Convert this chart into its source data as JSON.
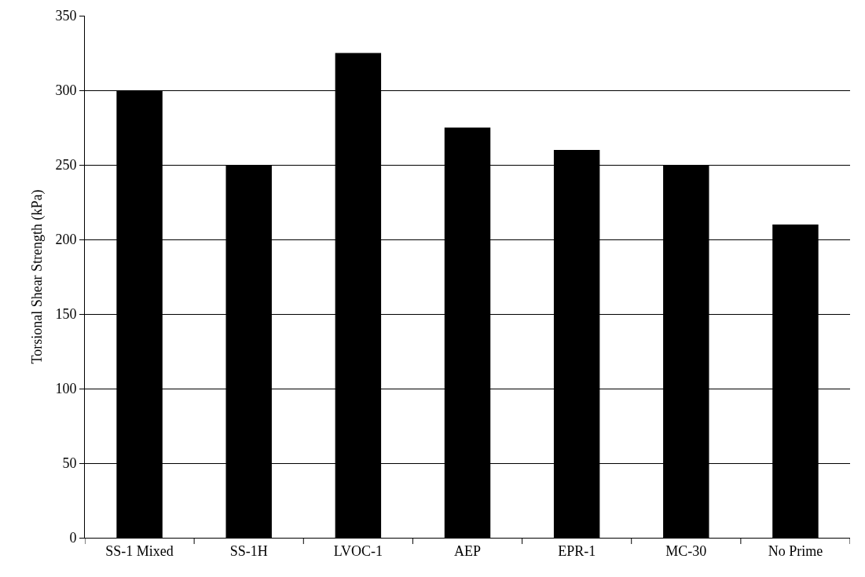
{
  "chart_data": {
    "type": "bar",
    "ylabel": "Torsional Shear Strength (kPa)",
    "categories": [
      "SS-1 Mixed",
      "SS-1H",
      "LVOC-1",
      "AEP",
      "EPR-1",
      "MC-30",
      "No Prime"
    ],
    "values": [
      300,
      250,
      325,
      275,
      260,
      250,
      210
    ],
    "color": "#000000",
    "ylim": [
      0,
      350
    ],
    "yticks": [
      0,
      50,
      100,
      150,
      200,
      250,
      300,
      350
    ],
    "grid": "y"
  }
}
